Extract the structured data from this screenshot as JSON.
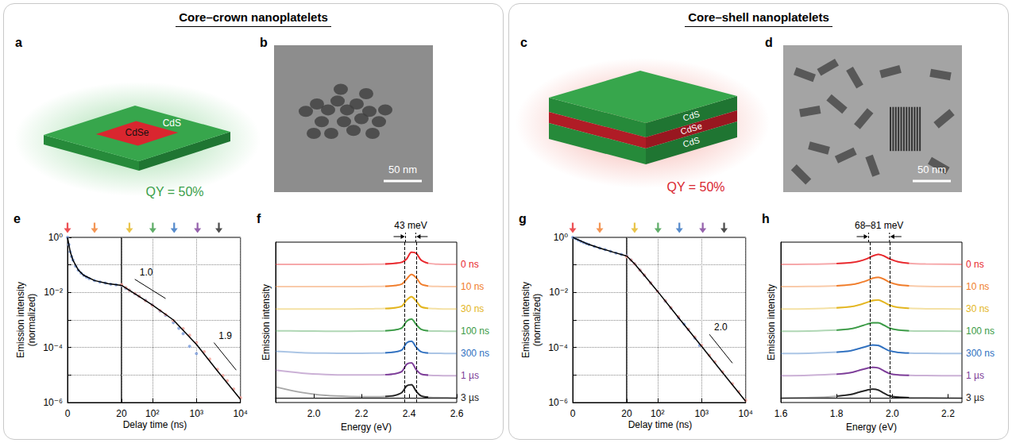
{
  "sections": [
    {
      "title": "Core–crown nanoplatelets",
      "schematic": {
        "panel": "a",
        "labels": [
          "CdSe",
          "CdS"
        ],
        "qy": "QY = 50%"
      },
      "image": {
        "panel": "b",
        "scale_bar": "50 nm"
      }
    },
    {
      "title": "Core–shell nanoplatelets",
      "schematic": {
        "panel": "c",
        "labels": [
          "CdS",
          "CdSe",
          "CdS"
        ],
        "qy": "QY = 50%"
      },
      "image": {
        "panel": "d",
        "scale_bar": "50 nm"
      }
    }
  ],
  "chart_data": [
    {
      "panel": "e",
      "type": "scatter",
      "xlabel": "Delay time (ns)",
      "ylabel": "Emission intensity (normalized)",
      "log": true,
      "linear_until": 20,
      "grid": true,
      "xlim": [
        0,
        10000
      ],
      "xticks": [
        0,
        20,
        {
          "value": 100,
          "label": "10²"
        },
        {
          "value": 1000,
          "label": "10³"
        },
        {
          "value": 10000,
          "label": "10⁴"
        }
      ],
      "ylim": [
        1e-06,
        1
      ],
      "yticks": [
        {
          "value": 1,
          "label": "10⁰"
        },
        {
          "value": 0.01,
          "label": "10⁻²"
        },
        {
          "value": 0.0001,
          "label": "10⁻⁴"
        },
        {
          "value": 1e-06,
          "label": "10⁻⁶"
        }
      ],
      "series": [
        {
          "type": "scatter",
          "marker": "circle",
          "color": "#7f9fdc",
          "x": [
            0,
            0.5,
            1,
            1.5,
            2,
            3,
            4,
            5,
            6,
            7,
            8,
            10,
            12,
            14,
            16,
            18,
            20,
            25,
            30,
            40,
            50,
            70,
            100,
            150,
            200,
            300,
            400,
            500,
            700,
            1000
          ],
          "values": [
            1,
            0.55,
            0.3,
            0.2,
            0.15,
            0.09,
            0.065,
            0.05,
            0.042,
            0.036,
            0.032,
            0.027,
            0.024,
            0.022,
            0.02,
            0.019,
            0.018,
            0.014,
            0.012,
            0.009,
            0.0072,
            0.0052,
            0.0035,
            0.0021,
            0.0015,
            0.0008,
            0.0005,
            0.00032,
            0.00011,
            6e-05
          ]
        },
        {
          "type": "scatter",
          "marker": "circle",
          "color": "#f3a39b",
          "x": [
            20,
            25,
            30,
            40,
            50,
            70,
            100,
            150,
            200,
            300,
            500,
            700,
            1000,
            1500,
            2000,
            3000,
            4000,
            5000,
            7000,
            10000
          ],
          "values": [
            0.019,
            0.015,
            0.012,
            0.0092,
            0.0073,
            0.005,
            0.0034,
            0.0022,
            0.0016,
            0.00095,
            0.00048,
            0.00028,
            0.00015,
            7e-05,
            3.8e-05,
            1.6e-05,
            9.5e-06,
            6.2e-06,
            3.1e-06,
            1.5e-06
          ]
        },
        {
          "type": "line",
          "line_style": "solid",
          "color": "#000000",
          "x": [
            0,
            1,
            2,
            4,
            6,
            10,
            15,
            20,
            50,
            100,
            300,
            1000,
            3000,
            10000
          ],
          "values": [
            1,
            0.3,
            0.15,
            0.065,
            0.042,
            0.027,
            0.021,
            0.018,
            0.0072,
            0.0035,
            0.001,
            0.00013,
            1.4e-05,
            1.3e-06
          ]
        }
      ],
      "arrows": {
        "x": [
          0,
          10,
          30,
          100,
          300,
          1000,
          3000
        ],
        "colors": [
          "#e8262b",
          "#f07c2a",
          "#e3b51e",
          "#3a9a45",
          "#2e6fbf",
          "#7c3c98",
          "#222222"
        ]
      },
      "annotations": [
        {
          "text": "1.0",
          "x": [
            40,
            200
          ],
          "y": [
            0.03,
            0.006
          ]
        },
        {
          "text": "1.9",
          "x": [
            2500,
            8000
          ],
          "y": [
            0.00015,
            1.5e-05
          ]
        }
      ]
    },
    {
      "panel": "f",
      "type": "line",
      "xlabel": "Energy (eV)",
      "ylabel": "Emission intensity",
      "tick_labels": "x",
      "grid": false,
      "xlim": [
        1.84,
        2.6
      ],
      "xticks": [
        {
          "value": 2,
          "label": "2.0"
        },
        2.2,
        2.4,
        2.6
      ],
      "ylim": [
        -0.2,
        7
      ],
      "x": [
        1.84,
        1.95,
        2.05,
        2.15,
        2.25,
        2.3,
        2.34,
        2.37,
        2.39,
        2.41,
        2.43,
        2.45,
        2.48,
        2.52,
        2.56,
        2.6
      ],
      "fit_range": [
        2.3,
        2.5
      ],
      "dashed_lines": [
        2.385,
        2.428
      ],
      "annotation": "43 meV",
      "series": [
        {
          "name": "0 ns",
          "color": "#e8262b",
          "values": [
            6,
            6,
            6,
            6,
            6.01,
            6.02,
            6.05,
            6.1,
            6.25,
            6.55,
            6.5,
            6.2,
            6.05,
            6.01,
            6,
            6
          ]
        },
        {
          "name": "10 ns",
          "color": "#f07c2a",
          "values": [
            5,
            5,
            5,
            5,
            5.01,
            5.02,
            5.05,
            5.12,
            5.35,
            5.55,
            5.4,
            5.12,
            5.03,
            5.01,
            5,
            5
          ]
        },
        {
          "name": "30 ns",
          "color": "#e3b51e",
          "values": [
            4,
            4,
            4,
            4,
            4.01,
            4.02,
            4.05,
            4.13,
            4.4,
            4.55,
            4.35,
            4.1,
            4.03,
            4.01,
            4,
            4
          ]
        },
        {
          "name": "100 ns",
          "color": "#3a9a45",
          "values": [
            3.02,
            3.01,
            3,
            3,
            3.01,
            3.02,
            3.06,
            3.15,
            3.45,
            3.55,
            3.3,
            3.09,
            3.02,
            3.01,
            3,
            3
          ]
        },
        {
          "name": "300 ns",
          "color": "#2e6fbf",
          "values": [
            2.1,
            2.04,
            2.02,
            2.01,
            2.02,
            2.03,
            2.07,
            2.16,
            2.48,
            2.55,
            2.28,
            2.08,
            2.02,
            2.01,
            2,
            2
          ]
        },
        {
          "name": "1 µs",
          "color": "#7c3c98",
          "values": [
            1.25,
            1.12,
            1.06,
            1.04,
            1.04,
            1.05,
            1.09,
            1.2,
            1.52,
            1.58,
            1.27,
            1.08,
            1.03,
            1.01,
            1,
            1
          ]
        },
        {
          "name": "3 µs",
          "color": "#222222",
          "values": [
            0.5,
            0.25,
            0.12,
            0.07,
            0.06,
            0.07,
            0.12,
            0.25,
            0.55,
            0.6,
            0.3,
            0.1,
            0.04,
            0.02,
            0.01,
            0
          ]
        }
      ]
    },
    {
      "panel": "g",
      "type": "scatter",
      "xlabel": "Delay time (ns)",
      "ylabel": "Emission intensity (normalized)",
      "log": true,
      "linear_until": 20,
      "grid": true,
      "xlim": [
        0,
        10000
      ],
      "xticks": [
        0,
        20,
        {
          "value": 100,
          "label": "10²"
        },
        {
          "value": 1000,
          "label": "10³"
        },
        {
          "value": 10000,
          "label": "10⁴"
        }
      ],
      "ylim": [
        1e-06,
        1
      ],
      "yticks": [
        {
          "value": 1,
          "label": "10⁰"
        },
        {
          "value": 0.01,
          "label": "10⁻²"
        },
        {
          "value": 0.0001,
          "label": "10⁻⁴"
        },
        {
          "value": 1e-06,
          "label": "10⁻⁶"
        }
      ],
      "series": [
        {
          "type": "scatter",
          "marker": "circle",
          "color": "#7f9fdc",
          "x": [
            0,
            1,
            2,
            3,
            4,
            5,
            6,
            8,
            10,
            12,
            14,
            16,
            18,
            20,
            25,
            30,
            40,
            50,
            70,
            100,
            150,
            200,
            300,
            400,
            500,
            700,
            900
          ],
          "values": [
            1,
            0.9,
            0.8,
            0.72,
            0.65,
            0.6,
            0.55,
            0.47,
            0.41,
            0.36,
            0.31,
            0.27,
            0.24,
            0.21,
            0.15,
            0.11,
            0.065,
            0.042,
            0.022,
            0.011,
            0.0048,
            0.0027,
            0.0012,
            0.0007,
            0.00045,
            0.00022,
            0.00012
          ]
        },
        {
          "type": "scatter",
          "marker": "circle",
          "color": "#f3a39b",
          "x": [
            20,
            25,
            30,
            40,
            50,
            70,
            100,
            150,
            200,
            300,
            500,
            700,
            1000,
            1500,
            2000,
            3000,
            5000,
            7000,
            10000
          ],
          "values": [
            0.2,
            0.15,
            0.11,
            0.065,
            0.043,
            0.022,
            0.011,
            0.005,
            0.0028,
            0.0013,
            0.00046,
            0.00024,
            0.00012,
            5.2e-05,
            3e-05,
            1.3e-05,
            4.8e-06,
            2.5e-06,
            1.2e-06
          ]
        },
        {
          "type": "line",
          "line_style": "solid",
          "color": "#000000",
          "x": [
            0,
            5,
            10,
            15,
            20,
            30,
            50,
            100,
            300,
            1000,
            3000,
            10000
          ],
          "values": [
            1,
            0.6,
            0.41,
            0.29,
            0.21,
            0.11,
            0.042,
            0.011,
            0.0012,
            0.00011,
            1.2e-05,
            1.1e-06
          ]
        }
      ],
      "arrows": {
        "x": [
          0,
          10,
          30,
          100,
          300,
          1000,
          3000
        ],
        "colors": [
          "#e8262b",
          "#f07c2a",
          "#e3b51e",
          "#3a9a45",
          "#2e6fbf",
          "#7c3c98",
          "#222222"
        ]
      },
      "annotations": [
        {
          "text": "2.0",
          "x": [
            1500,
            5000
          ],
          "y": [
            0.0003,
            2.7e-05
          ]
        }
      ]
    },
    {
      "panel": "h",
      "type": "line",
      "xlabel": "Energy (eV)",
      "ylabel": "Emission intensity",
      "tick_labels": "x",
      "grid": false,
      "xlim": [
        1.6,
        2.25
      ],
      "xticks": [
        1.6,
        1.8,
        {
          "value": 2,
          "label": "2.0"
        },
        2.2
      ],
      "ylim": [
        -0.2,
        7
      ],
      "x": [
        1.6,
        1.7,
        1.8,
        1.85,
        1.88,
        1.91,
        1.93,
        1.95,
        1.97,
        1.99,
        2.02,
        2.06,
        2.12,
        2.25
      ],
      "fit_range": [
        1.8,
        2.1
      ],
      "dashed_lines": [
        1.915,
        1.99
      ],
      "annotation": "68–81 meV",
      "series": [
        {
          "name": "0 ns",
          "color": "#e8262b",
          "values": [
            6,
            6.01,
            6.04,
            6.08,
            6.14,
            6.26,
            6.38,
            6.45,
            6.38,
            6.25,
            6.12,
            6.05,
            6.02,
            6
          ]
        },
        {
          "name": "10 ns",
          "color": "#f07c2a",
          "values": [
            5,
            5.01,
            5.04,
            5.09,
            5.16,
            5.28,
            5.38,
            5.42,
            5.34,
            5.2,
            5.09,
            5.04,
            5.01,
            5
          ]
        },
        {
          "name": "30 ns",
          "color": "#e3b51e",
          "values": [
            4,
            4.01,
            4.05,
            4.1,
            4.18,
            4.3,
            4.38,
            4.4,
            4.3,
            4.17,
            4.07,
            4.03,
            4.01,
            4
          ]
        },
        {
          "name": "100 ns",
          "color": "#3a9a45",
          "values": [
            3,
            3.01,
            3.05,
            3.11,
            3.2,
            3.32,
            3.38,
            3.38,
            3.27,
            3.14,
            3.06,
            3.02,
            3.01,
            3
          ]
        },
        {
          "name": "300 ns",
          "color": "#2e6fbf",
          "values": [
            2,
            2.01,
            2.06,
            2.12,
            2.22,
            2.33,
            2.38,
            2.36,
            2.24,
            2.12,
            2.05,
            2.02,
            2.01,
            2
          ]
        },
        {
          "name": "1 µs",
          "color": "#7c3c98",
          "values": [
            1,
            1.02,
            1.07,
            1.14,
            1.24,
            1.34,
            1.38,
            1.35,
            1.22,
            1.1,
            1.04,
            1.02,
            1.01,
            1
          ]
        },
        {
          "name": "3 µs",
          "color": "#222222",
          "values": [
            0,
            0.02,
            0.08,
            0.16,
            0.26,
            0.36,
            0.4,
            0.36,
            0.22,
            0.1,
            0.04,
            0.02,
            0.01,
            0
          ]
        }
      ]
    }
  ]
}
